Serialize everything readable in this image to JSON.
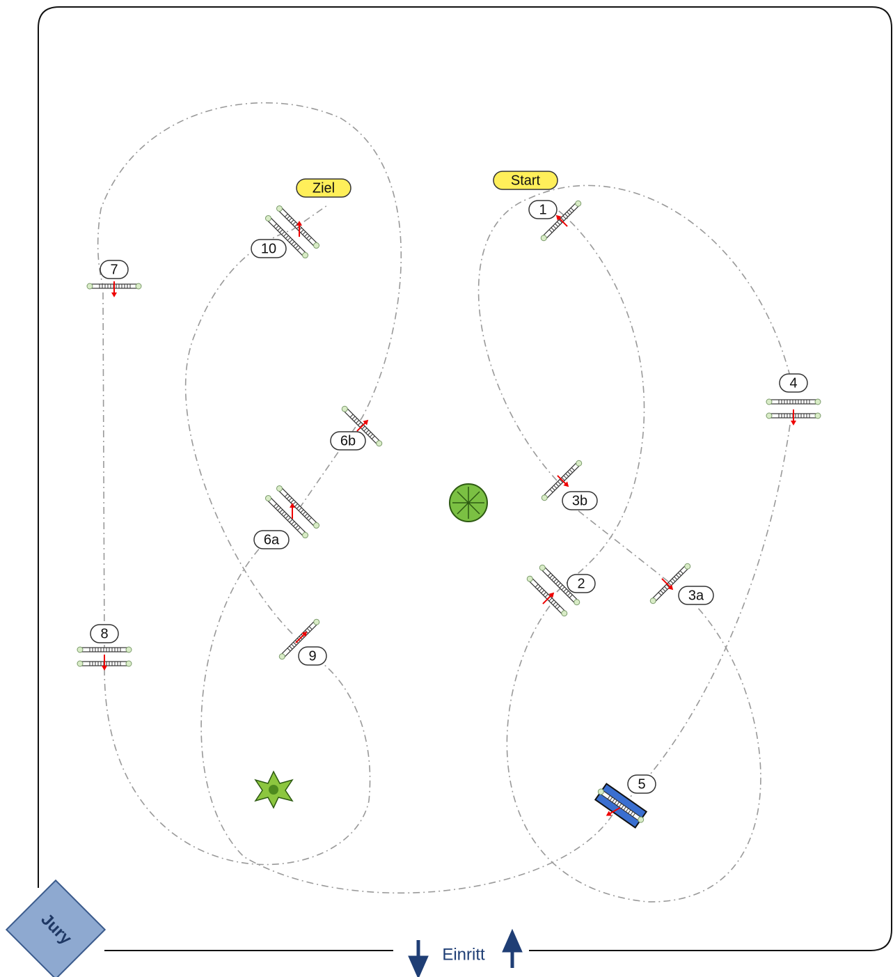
{
  "markers": {
    "start": "Start",
    "finish": "Ziel"
  },
  "obstacles": [
    {
      "label": "1"
    },
    {
      "label": "2"
    },
    {
      "label": "3a"
    },
    {
      "label": "3b"
    },
    {
      "label": "4"
    },
    {
      "label": "5"
    },
    {
      "label": "6a"
    },
    {
      "label": "6b"
    },
    {
      "label": "7"
    },
    {
      "label": "8"
    },
    {
      "label": "9"
    },
    {
      "label": "10"
    }
  ],
  "jury": "Jury",
  "entrance": "Einritt"
}
